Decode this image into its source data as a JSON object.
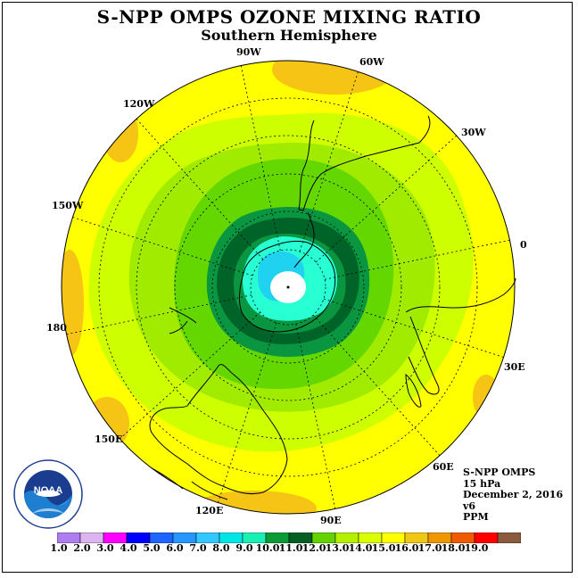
{
  "title": "S-NPP OMPS OZONE MIXING RATIO",
  "subtitle": "Southern Hemisphere",
  "longitude_labels": [
    "90W",
    "60W",
    "30W",
    "0",
    "30E",
    "60E",
    "90E",
    "120E",
    "150E",
    "180",
    "150W",
    "120W"
  ],
  "info": {
    "instrument": "S-NPP OMPS",
    "level": "15 hPa",
    "date": "December 2, 2016",
    "version": "v6",
    "units": "PPM"
  },
  "colorbar": {
    "ticks": [
      "1.0",
      "2.0",
      "3.0",
      "4.0",
      "5.0",
      "6.0",
      "7.0",
      "8.0",
      "9.0",
      "10.0",
      "11.0",
      "12.0",
      "13.0",
      "14.0",
      "15.0",
      "16.0",
      "17.0",
      "18.0",
      "19.0"
    ],
    "colors": [
      "#b07df0",
      "#dcb4f0",
      "#ff00ff",
      "#0000ff",
      "#1e64ff",
      "#2896ff",
      "#32c8ff",
      "#00e6e6",
      "#19f0b4",
      "#0a9b37",
      "#055f22",
      "#64d200",
      "#b4f000",
      "#dcff00",
      "#ffff00",
      "#f0c814",
      "#f09600",
      "#f05a00",
      "#ff0000",
      "#8b5a3c"
    ]
  },
  "ozone_colors": {
    "c8": "#1ed2f0",
    "c9": "#28ffd2",
    "c10": "#0a9641",
    "c11": "#006428",
    "c12": "#64d700",
    "c13": "#a0eb00",
    "c14": "#cdff00",
    "c15": "#ffff00",
    "c16": "#f5c414"
  },
  "logo_text": "NOAA"
}
